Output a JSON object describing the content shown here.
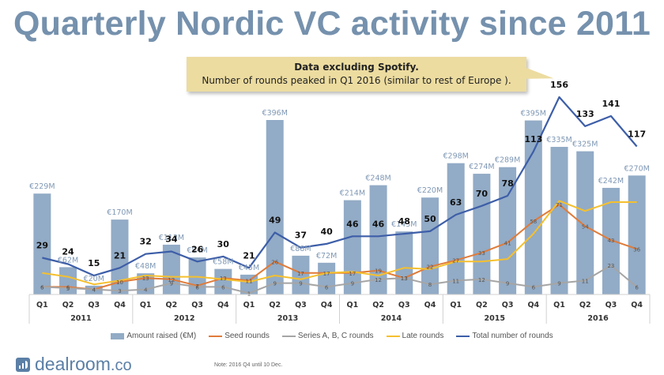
{
  "header": {
    "title": "Quarterly Nordic VC activity since 2011"
  },
  "callout": {
    "line1": "Data excluding Spotify.",
    "line2": "Number of rounds peaked in Q1 2016 (similar to rest of Europe )."
  },
  "chart_data": {
    "type": "bar",
    "title": "Quarterly Nordic VC activity since 2011",
    "xlabel": "",
    "ylabel": "",
    "categories": [
      "Q1",
      "Q2",
      "Q3",
      "Q4",
      "Q1",
      "Q2",
      "Q3",
      "Q4",
      "Q1",
      "Q2",
      "Q3",
      "Q4",
      "Q1",
      "Q2",
      "Q3",
      "Q4",
      "Q1",
      "Q2",
      "Q3",
      "Q4",
      "Q1",
      "Q2",
      "Q3",
      "Q4"
    ],
    "years": [
      "2011",
      "2012",
      "2013",
      "2014",
      "2015",
      "2016"
    ],
    "bar_ylim": [
      0,
      400
    ],
    "line_ylim": [
      0,
      160
    ],
    "grid": false,
    "legend_position": "bottom",
    "series": [
      {
        "name": "Amount raised (€M)",
        "type": "bar",
        "color": "#92abc6",
        "values": [
          229,
          62,
          20,
          170,
          48,
          113,
          84,
          58,
          45,
          396,
          88,
          72,
          214,
          248,
          143,
          220,
          298,
          274,
          289,
          395,
          335,
          325,
          242,
          270
        ],
        "labels": [
          "€229M",
          "€62M",
          "€20M",
          "€170M",
          "€48M",
          "€113M",
          "€84M",
          "€58M",
          "€45M",
          "€396M",
          "€88M",
          "€72M",
          "€214M",
          "€248M",
          "€143M",
          "€220M",
          "€298M",
          "€274M",
          "€289M",
          "€395M",
          "€335M",
          "€325M",
          "€242M",
          "€270M"
        ]
      },
      {
        "name": "Seed rounds",
        "type": "line",
        "color": "#e07b39",
        "values": [
          6,
          6,
          4,
          10,
          13,
          12,
          7,
          13,
          11,
          26,
          17,
          17,
          17,
          19,
          13,
          22,
          27,
          33,
          41,
          58,
          71,
          54,
          43,
          36
        ]
      },
      {
        "name": "Series A, B, C rounds",
        "type": "line",
        "color": "#a5a5a5",
        "values": [
          6,
          5,
          4,
          3,
          4,
          9,
          6,
          6,
          1,
          9,
          9,
          6,
          9,
          12,
          13,
          8,
          11,
          12,
          9,
          6,
          9,
          11,
          23,
          6
        ]
      },
      {
        "name": "Late rounds",
        "type": "line",
        "color": "#f5c02e",
        "values": [
          17,
          14,
          8,
          11,
          15,
          14,
          14,
          12,
          10,
          15,
          12,
          17,
          18,
          15,
          21,
          20,
          26,
          26,
          28,
          48,
          74,
          66,
          73,
          73
        ]
      },
      {
        "name": "Total number of rounds",
        "type": "line",
        "color": "#3d5ea8",
        "values": [
          29,
          24,
          15,
          21,
          32,
          34,
          26,
          30,
          21,
          49,
          37,
          40,
          46,
          46,
          48,
          50,
          63,
          70,
          78,
          113,
          156,
          133,
          141,
          117
        ]
      }
    ],
    "labeled_series": [
      "Seed rounds",
      "Series A, B, C rounds",
      "Total number of rounds"
    ]
  },
  "legend": {
    "items": [
      {
        "label": "Amount raised (€M)",
        "color": "#92abc6"
      },
      {
        "label": "Seed rounds",
        "color": "#e07b39"
      },
      {
        "label": "Series A, B, C rounds",
        "color": "#a5a5a5"
      },
      {
        "label": "Late rounds",
        "color": "#f5c02e"
      },
      {
        "label": "Total number of rounds",
        "color": "#3d5ea8"
      }
    ]
  },
  "footer": {
    "logo_main": "dealroom",
    "logo_suffix": ".co",
    "note": "Note: 2016 Q4 until 10 Dec."
  }
}
